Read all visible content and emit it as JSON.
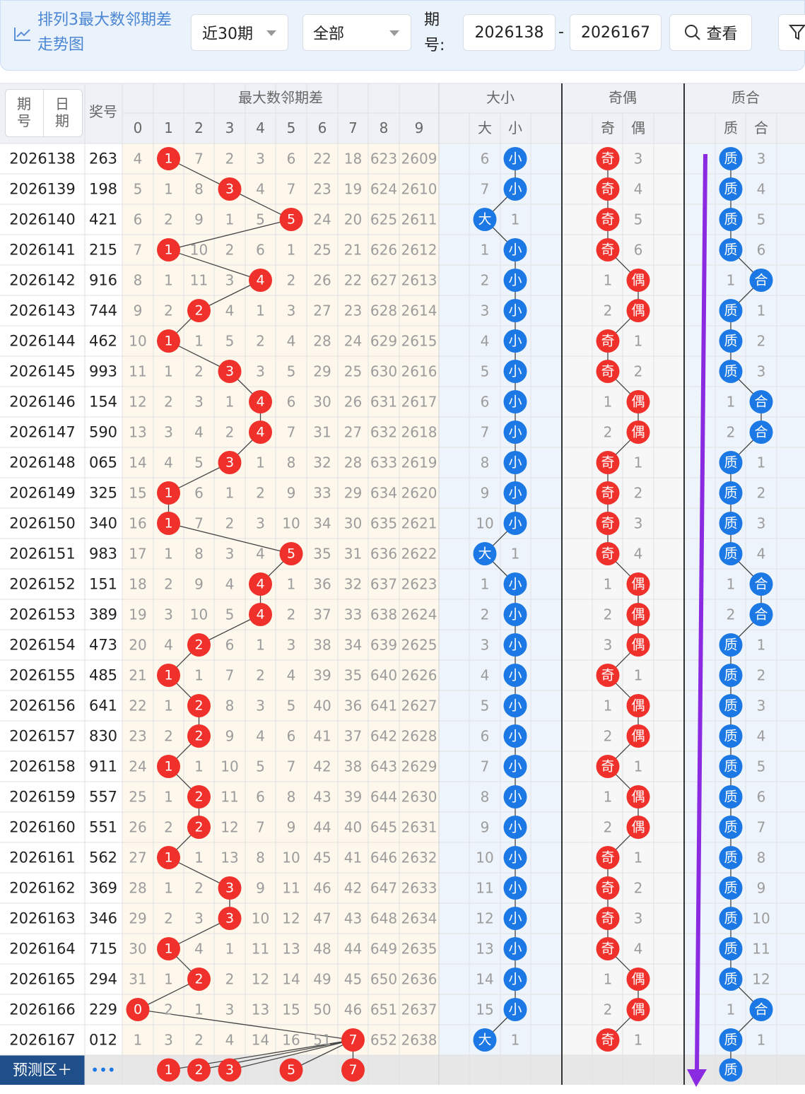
{
  "toolbar": {
    "title": "排列3最大数邻期差走势图",
    "range": "近30期",
    "filter": "全部",
    "issue_label": "期号:",
    "from": "2026138",
    "dash": "-",
    "to": "2026167",
    "button": "查看"
  },
  "table": {
    "header": {
      "tabs": [
        "期号",
        "日期"
      ],
      "number": "奖号",
      "groups": [
        "最大数邻期差",
        "大小",
        "奇偶",
        "质合"
      ],
      "digits": [
        "0",
        "1",
        "2",
        "3",
        "4",
        "5",
        "6",
        "7",
        "8",
        "9"
      ],
      "size": [
        "大",
        "小"
      ],
      "parity": [
        "奇",
        "偶"
      ],
      "prime": [
        "质",
        "合"
      ]
    },
    "rows": [
      {
        "issue": "2026138",
        "number": "263",
        "diff": [
          4,
          "1",
          7,
          2,
          3,
          6,
          22,
          18,
          623,
          2609
        ],
        "size": [
          6,
          "小"
        ],
        "parity": [
          "奇",
          3
        ],
        "prime": [
          "质",
          3
        ]
      },
      {
        "issue": "2026139",
        "number": "198",
        "diff": [
          5,
          1,
          8,
          "3",
          4,
          7,
          23,
          19,
          624,
          2610
        ],
        "size": [
          7,
          "小"
        ],
        "parity": [
          "奇",
          4
        ],
        "prime": [
          "质",
          4
        ]
      },
      {
        "issue": "2026140",
        "number": "421",
        "diff": [
          6,
          2,
          9,
          1,
          5,
          "5",
          24,
          20,
          625,
          2611
        ],
        "size": [
          "大",
          1
        ],
        "parity": [
          "奇",
          5
        ],
        "prime": [
          "质",
          5
        ]
      },
      {
        "issue": "2026141",
        "number": "215",
        "diff": [
          7,
          "1",
          10,
          2,
          6,
          1,
          25,
          21,
          626,
          2612
        ],
        "size": [
          1,
          "小"
        ],
        "parity": [
          "奇",
          6
        ],
        "prime": [
          "质",
          6
        ]
      },
      {
        "issue": "2026142",
        "number": "916",
        "diff": [
          8,
          1,
          11,
          3,
          "4",
          2,
          26,
          22,
          627,
          2613
        ],
        "size": [
          2,
          "小"
        ],
        "parity": [
          1,
          "偶"
        ],
        "prime": [
          1,
          "合"
        ]
      },
      {
        "issue": "2026143",
        "number": "744",
        "diff": [
          9,
          2,
          "2",
          4,
          1,
          3,
          27,
          23,
          628,
          2614
        ],
        "size": [
          3,
          "小"
        ],
        "parity": [
          2,
          "偶"
        ],
        "prime": [
          "质",
          1
        ]
      },
      {
        "issue": "2026144",
        "number": "462",
        "diff": [
          10,
          "1",
          1,
          5,
          2,
          4,
          28,
          24,
          629,
          2615
        ],
        "size": [
          4,
          "小"
        ],
        "parity": [
          "奇",
          1
        ],
        "prime": [
          "质",
          2
        ]
      },
      {
        "issue": "2026145",
        "number": "993",
        "diff": [
          11,
          1,
          2,
          "3",
          3,
          5,
          29,
          25,
          630,
          2616
        ],
        "size": [
          5,
          "小"
        ],
        "parity": [
          "奇",
          2
        ],
        "prime": [
          "质",
          3
        ]
      },
      {
        "issue": "2026146",
        "number": "154",
        "diff": [
          12,
          2,
          3,
          1,
          "4",
          6,
          30,
          26,
          631,
          2617
        ],
        "size": [
          6,
          "小"
        ],
        "parity": [
          1,
          "偶"
        ],
        "prime": [
          1,
          "合"
        ]
      },
      {
        "issue": "2026147",
        "number": "590",
        "diff": [
          13,
          3,
          4,
          2,
          "4",
          7,
          31,
          27,
          632,
          2618
        ],
        "size": [
          7,
          "小"
        ],
        "parity": [
          2,
          "偶"
        ],
        "prime": [
          2,
          "合"
        ]
      },
      {
        "issue": "2026148",
        "number": "065",
        "diff": [
          14,
          4,
          5,
          "3",
          1,
          8,
          32,
          28,
          633,
          2619
        ],
        "size": [
          8,
          "小"
        ],
        "parity": [
          "奇",
          1
        ],
        "prime": [
          "质",
          1
        ]
      },
      {
        "issue": "2026149",
        "number": "325",
        "diff": [
          15,
          "1",
          6,
          1,
          2,
          9,
          33,
          29,
          634,
          2620
        ],
        "size": [
          9,
          "小"
        ],
        "parity": [
          "奇",
          2
        ],
        "prime": [
          "质",
          2
        ]
      },
      {
        "issue": "2026150",
        "number": "340",
        "diff": [
          16,
          "1",
          7,
          2,
          3,
          10,
          34,
          30,
          635,
          2621
        ],
        "size": [
          10,
          "小"
        ],
        "parity": [
          "奇",
          3
        ],
        "prime": [
          "质",
          3
        ]
      },
      {
        "issue": "2026151",
        "number": "983",
        "diff": [
          17,
          1,
          8,
          3,
          4,
          "5",
          35,
          31,
          636,
          2622
        ],
        "size": [
          "大",
          1
        ],
        "parity": [
          "奇",
          4
        ],
        "prime": [
          "质",
          4
        ]
      },
      {
        "issue": "2026152",
        "number": "151",
        "diff": [
          18,
          2,
          9,
          4,
          "4",
          1,
          36,
          32,
          637,
          2623
        ],
        "size": [
          1,
          "小"
        ],
        "parity": [
          1,
          "偶"
        ],
        "prime": [
          1,
          "合"
        ]
      },
      {
        "issue": "2026153",
        "number": "389",
        "diff": [
          19,
          3,
          10,
          5,
          "4",
          2,
          37,
          33,
          638,
          2624
        ],
        "size": [
          2,
          "小"
        ],
        "parity": [
          2,
          "偶"
        ],
        "prime": [
          2,
          "合"
        ]
      },
      {
        "issue": "2026154",
        "number": "473",
        "diff": [
          20,
          4,
          "2",
          6,
          1,
          3,
          38,
          34,
          639,
          2625
        ],
        "size": [
          3,
          "小"
        ],
        "parity": [
          3,
          "偶"
        ],
        "prime": [
          "质",
          1
        ]
      },
      {
        "issue": "2026155",
        "number": "485",
        "diff": [
          21,
          "1",
          1,
          7,
          2,
          4,
          39,
          35,
          640,
          2626
        ],
        "size": [
          4,
          "小"
        ],
        "parity": [
          "奇",
          1
        ],
        "prime": [
          "质",
          2
        ]
      },
      {
        "issue": "2026156",
        "number": "641",
        "diff": [
          22,
          1,
          "2",
          8,
          3,
          5,
          40,
          36,
          641,
          2627
        ],
        "size": [
          5,
          "小"
        ],
        "parity": [
          1,
          "偶"
        ],
        "prime": [
          "质",
          3
        ]
      },
      {
        "issue": "2026157",
        "number": "830",
        "diff": [
          23,
          2,
          "2",
          9,
          4,
          6,
          41,
          37,
          642,
          2628
        ],
        "size": [
          6,
          "小"
        ],
        "parity": [
          2,
          "偶"
        ],
        "prime": [
          "质",
          4
        ]
      },
      {
        "issue": "2026158",
        "number": "911",
        "diff": [
          24,
          "1",
          1,
          10,
          5,
          7,
          42,
          38,
          643,
          2629
        ],
        "size": [
          7,
          "小"
        ],
        "parity": [
          "奇",
          1
        ],
        "prime": [
          "质",
          5
        ]
      },
      {
        "issue": "2026159",
        "number": "557",
        "diff": [
          25,
          1,
          "2",
          11,
          6,
          8,
          43,
          39,
          644,
          2630
        ],
        "size": [
          8,
          "小"
        ],
        "parity": [
          1,
          "偶"
        ],
        "prime": [
          "质",
          6
        ]
      },
      {
        "issue": "2026160",
        "number": "551",
        "diff": [
          26,
          2,
          "2",
          12,
          7,
          9,
          44,
          40,
          645,
          2631
        ],
        "size": [
          9,
          "小"
        ],
        "parity": [
          2,
          "偶"
        ],
        "prime": [
          "质",
          7
        ]
      },
      {
        "issue": "2026161",
        "number": "562",
        "diff": [
          27,
          "1",
          1,
          13,
          8,
          10,
          45,
          41,
          646,
          2632
        ],
        "size": [
          10,
          "小"
        ],
        "parity": [
          "奇",
          1
        ],
        "prime": [
          "质",
          8
        ]
      },
      {
        "issue": "2026162",
        "number": "369",
        "diff": [
          28,
          1,
          2,
          "3",
          9,
          11,
          46,
          42,
          647,
          2633
        ],
        "size": [
          11,
          "小"
        ],
        "parity": [
          "奇",
          2
        ],
        "prime": [
          "质",
          9
        ]
      },
      {
        "issue": "2026163",
        "number": "346",
        "diff": [
          29,
          2,
          3,
          "3",
          10,
          12,
          47,
          43,
          648,
          2634
        ],
        "size": [
          12,
          "小"
        ],
        "parity": [
          "奇",
          3
        ],
        "prime": [
          "质",
          10
        ]
      },
      {
        "issue": "2026164",
        "number": "715",
        "diff": [
          30,
          "1",
          4,
          1,
          11,
          13,
          48,
          44,
          649,
          2635
        ],
        "size": [
          13,
          "小"
        ],
        "parity": [
          "奇",
          4
        ],
        "prime": [
          "质",
          11
        ]
      },
      {
        "issue": "2026165",
        "number": "294",
        "diff": [
          31,
          1,
          "2",
          2,
          12,
          14,
          49,
          45,
          650,
          2636
        ],
        "size": [
          14,
          "小"
        ],
        "parity": [
          1,
          "偶"
        ],
        "prime": [
          "质",
          12
        ]
      },
      {
        "issue": "2026166",
        "number": "229",
        "diff": [
          "0",
          2,
          1,
          3,
          13,
          15,
          50,
          46,
          651,
          2637
        ],
        "size": [
          15,
          "小"
        ],
        "parity": [
          2,
          "偶"
        ],
        "prime": [
          1,
          "合"
        ]
      },
      {
        "issue": "2026167",
        "number": "012",
        "diff": [
          1,
          3,
          2,
          4,
          14,
          16,
          51,
          "7",
          652,
          2638
        ],
        "size": [
          "大",
          1
        ],
        "parity": [
          "奇",
          1
        ],
        "prime": [
          "质",
          1
        ]
      }
    ],
    "forecast": {
      "label": "预测区＋",
      "more": "•••",
      "diff": [
        null,
        "1",
        "2",
        "3",
        null,
        "5",
        null,
        "7",
        null,
        null
      ],
      "prime": [
        "质",
        null
      ]
    }
  }
}
